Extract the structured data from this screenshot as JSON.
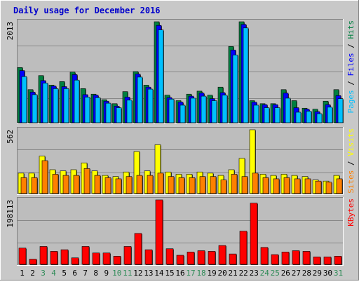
{
  "chart_data": {
    "type": "bar",
    "title": "Daily usage for December 2016",
    "colors": {
      "outer_bg": "#c8c8c8",
      "plot_bg": "#bdbdbd",
      "grid": "#888888",
      "title_text": "#0000cc",
      "hits": "#008040",
      "files": "#0000ff",
      "pages": "#00c0ff",
      "visits": "#ffff00",
      "sites": "#ff8000",
      "kbytes": "#ff0000",
      "weekday_label": "#000000",
      "weekend_label": "#2e8b57"
    },
    "panel_labels": {
      "top": {
        "parts": [
          "Pages",
          " / ",
          "Files",
          " / ",
          "Hits"
        ],
        "colors": [
          "#00c0ff",
          "#000000",
          "#0000ff",
          "#000000",
          "#008040"
        ]
      },
      "mid": {
        "parts": [
          "Sites",
          " / ",
          "Visits"
        ],
        "colors": [
          "#ff8000",
          "#000000",
          "#ffff00"
        ]
      },
      "bottom": {
        "parts": [
          "KBytes"
        ],
        "colors": [
          "#ff0000"
        ]
      }
    },
    "categories": [
      "1",
      "2",
      "3",
      "4",
      "5",
      "6",
      "7",
      "8",
      "9",
      "10",
      "11",
      "12",
      "13",
      "14",
      "15",
      "16",
      "17",
      "18",
      "19",
      "20",
      "21",
      "22",
      "23",
      "24",
      "25",
      "26",
      "27",
      "28",
      "29",
      "30",
      "31"
    ],
    "weekend_days": [
      "3",
      "4",
      "10",
      "11",
      "17",
      "18",
      "24",
      "25",
      "31"
    ],
    "panels": [
      {
        "id": "top",
        "max_label": "2013",
        "ylim": [
          0,
          2013
        ],
        "series": [
          {
            "name": "Hits",
            "color": "#008040",
            "values": [
              1100,
              660,
              940,
              750,
              820,
              1010,
              680,
              570,
              460,
              380,
              620,
              1020,
              750,
              2013,
              550,
              440,
              570,
              630,
              550,
              710,
              1520,
              2013,
              440,
              380,
              380,
              660,
              440,
              290,
              270,
              430,
              660
            ]
          },
          {
            "name": "Files",
            "color": "#0000ff",
            "values": [
              1040,
              610,
              840,
              730,
              720,
              960,
              560,
              550,
              430,
              330,
              510,
              970,
              710,
              1940,
              500,
              410,
              530,
              590,
              480,
              600,
              1450,
              1960,
              410,
              360,
              360,
              590,
              300,
              270,
              220,
              360,
              540
            ]
          },
          {
            "name": "Pages",
            "color": "#00c0ff",
            "values": [
              920,
              560,
              790,
              680,
              680,
              850,
              510,
              500,
              390,
              300,
              450,
              910,
              670,
              1850,
              470,
              350,
              490,
              530,
              440,
              550,
              1350,
              1890,
              350,
              300,
              300,
              490,
              210,
              230,
              180,
              310,
              480
            ]
          }
        ]
      },
      {
        "id": "mid",
        "max_label": "562",
        "ylim": [
          0,
          562
        ],
        "series": [
          {
            "name": "Visits",
            "color": "#ffff00",
            "values": [
              180,
              180,
              330,
              210,
              200,
              210,
              270,
              200,
              160,
              150,
              190,
              370,
              200,
              430,
              190,
              170,
              170,
              190,
              180,
              160,
              210,
              310,
              562,
              170,
              160,
              170,
              160,
              150,
              120,
              110,
              160
            ]
          },
          {
            "name": "Sites",
            "color": "#ff8000",
            "values": [
              140,
              140,
              290,
              170,
              160,
              160,
              220,
              160,
              140,
              130,
              150,
              160,
              160,
              180,
              150,
              140,
              140,
              150,
              150,
              120,
              170,
              150,
              180,
              140,
              130,
              140,
              130,
              130,
              110,
              100,
              130
            ]
          }
        ]
      },
      {
        "id": "bottom",
        "max_label": "198113",
        "ylim": [
          0,
          198113
        ],
        "series": [
          {
            "name": "KBytes",
            "color": "#ff0000",
            "values": [
              50000,
              16000,
              55000,
              40000,
              45000,
              20000,
              55000,
              35000,
              35000,
              25000,
              55000,
              95000,
              45000,
              198113,
              48000,
              28000,
              38000,
              42000,
              40000,
              58000,
              32000,
              102000,
              188000,
              52000,
              30000,
              38000,
              42000,
              40000,
              23000,
              23000,
              25000
            ]
          }
        ]
      }
    ]
  }
}
